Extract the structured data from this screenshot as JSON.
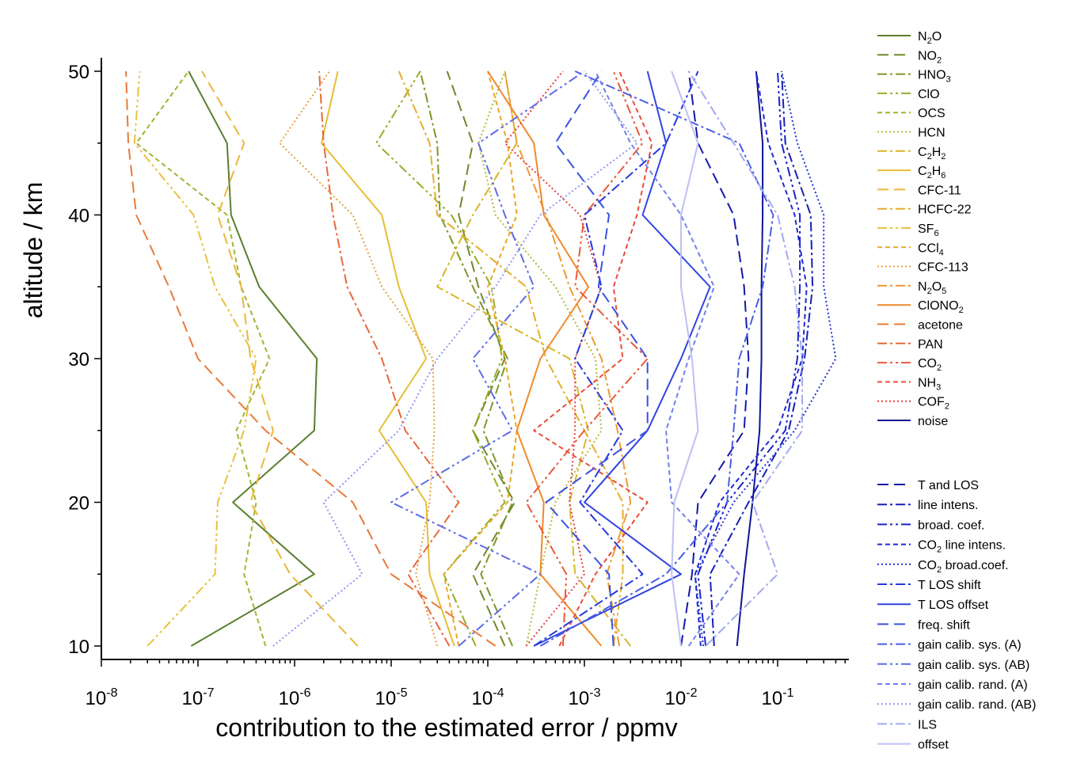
{
  "chart_data": {
    "type": "line",
    "xlabel": "contribution to the estimated error / ppmv",
    "ylabel": "altitude / km",
    "xscale": "log",
    "xlim": [
      1e-08,
      1
    ],
    "ylim": [
      10,
      50
    ],
    "xticks": [
      {
        "base": "10",
        "exp": "-8"
      },
      {
        "base": "10",
        "exp": "-7"
      },
      {
        "base": "10",
        "exp": "-6"
      },
      {
        "base": "10",
        "exp": "-5"
      },
      {
        "base": "10",
        "exp": "-4"
      },
      {
        "base": "10",
        "exp": "-3"
      },
      {
        "base": "10",
        "exp": "-2"
      },
      {
        "base": "10",
        "exp": "-1"
      }
    ],
    "yticks": [
      "10",
      "20",
      "30",
      "40",
      "50"
    ],
    "grid": false,
    "legend_position": "right",
    "altitudes": [
      10,
      15,
      20,
      25,
      30,
      35,
      40,
      45,
      50
    ],
    "series": [
      {
        "name": "N2O",
        "label_main": "N",
        "label_sub": "2",
        "label_tail": "O",
        "color": "#5a7f2e",
        "dash": "solid",
        "values": [
          8.5e-08,
          1.6e-06,
          2.3e-07,
          1.6e-06,
          1.7e-06,
          4.3e-07,
          2.2e-07,
          2e-07,
          8e-08
        ]
      },
      {
        "name": "NO2",
        "label_main": "NO",
        "label_sub": "2",
        "label_tail": "",
        "color": "#6f8a2a",
        "dash": "dash",
        "values": [
          0.00015,
          7e-05,
          0.00019,
          7e-05,
          0.00015,
          8e-05,
          5e-05,
          7e-05,
          3.8e-05
        ]
      },
      {
        "name": "HNO3",
        "label_main": "HNO",
        "label_sub": "3",
        "label_tail": "",
        "color": "#7e9628",
        "dash": "dashdot",
        "values": [
          0.00018,
          8.5e-05,
          0.00018,
          9e-05,
          0.00016,
          7e-05,
          3.2e-05,
          3e-05,
          2e-05
        ]
      },
      {
        "name": "ClO",
        "label_main": "ClO",
        "label_sub": "",
        "label_tail": "",
        "color": "#9aab2a",
        "dash": "dashdotdot",
        "values": [
          7.5e-05,
          3.5e-05,
          0.00015,
          7e-05,
          0.00014,
          0.00011,
          4.2e-05,
          7e-06,
          2e-05
        ]
      },
      {
        "name": "OCS",
        "label_main": "OCS",
        "label_sub": "",
        "label_tail": "",
        "color": "#a5b22e",
        "dash": "dash-short",
        "values": [
          5e-07,
          3e-07,
          4e-07,
          2.5e-07,
          5.5e-07,
          2.8e-07,
          2e-07,
          2.3e-08,
          8e-08
        ]
      },
      {
        "name": "HCN",
        "label_main": "HCN",
        "label_sub": "",
        "label_tail": "",
        "color": "#b5b83a",
        "dash": "dot",
        "values": [
          0.00025,
          0.00035,
          0.0005,
          0.0015,
          0.0013,
          0.0005,
          0.00012,
          8e-05,
          0.00015
        ]
      },
      {
        "name": "C2H2",
        "label_main": "C",
        "label_sub": "2",
        "label_tail": "H",
        "label_sub2": "2",
        "color": "#d8b629",
        "dash": "dashdot",
        "values": [
          0.003,
          0.0008,
          0.0007,
          0.0011,
          0.0007,
          3e-05,
          7e-05,
          0.0002,
          0.00015
        ]
      },
      {
        "name": "C2H6",
        "label_main": "C",
        "label_sub": "2",
        "label_tail": "H",
        "label_sub2": "6",
        "color": "#e7be35",
        "dash": "solid",
        "values": [
          4.5e-05,
          2.5e-05,
          2.3e-05,
          7.5e-06,
          2.3e-05,
          1.2e-05,
          8e-06,
          1.9e-06,
          2.8e-06
        ]
      },
      {
        "name": "CFC-11",
        "label_main": "CFC-11",
        "label_sub": "",
        "label_tail": "",
        "color": "#e9b83a",
        "dash": "dash",
        "values": [
          4.5e-06,
          9e-07,
          3.5e-07,
          6e-07,
          3.5e-07,
          2.8e-07,
          1.6e-07,
          3e-07,
          1.1e-07
        ]
      },
      {
        "name": "HCFC-22",
        "label_main": "HCFC-22",
        "label_sub": "",
        "label_tail": "",
        "color": "#e5ad2c",
        "dash": "dashdot",
        "values": [
          0.002,
          0.0025,
          0.0025,
          0.001,
          0.0004,
          0.00025,
          3e-05,
          2.5e-05,
          1.2e-05
        ]
      },
      {
        "name": "SF6",
        "label_main": "SF",
        "label_sub": "6",
        "label_tail": "",
        "color": "#e9c13e",
        "dash": "dashdotdot",
        "values": [
          3e-08,
          1.5e-07,
          1.6e-07,
          3e-07,
          4e-07,
          1.5e-07,
          9e-08,
          2.2e-08,
          2.5e-08
        ]
      },
      {
        "name": "CCl4",
        "label_main": "CCl",
        "label_sub": "4",
        "label_tail": "",
        "color": "#e8a828",
        "dash": "dash-short",
        "values": [
          5e-05,
          3.5e-05,
          0.00016,
          0.0002,
          0.00015,
          0.0001,
          0.0002,
          0.00016,
          0.0001
        ]
      },
      {
        "name": "CFC-113",
        "label_main": "CFC-113",
        "label_sub": "",
        "label_tail": "",
        "color": "#e7a03c",
        "dash": "dot",
        "values": [
          3e-05,
          1.8e-05,
          2.5e-05,
          2.8e-05,
          2.7e-05,
          8e-06,
          4e-06,
          7e-07,
          2.3e-06
        ]
      },
      {
        "name": "N2O5",
        "label_main": "N",
        "label_sub": "2",
        "label_tail": "O",
        "label_sub2": "5",
        "color": "#ec9a31",
        "dash": "dashdot",
        "values": [
          0.0023,
          0.0017,
          0.003,
          0.0022,
          0.0015,
          0.0007,
          0.0004,
          0.0002,
          0.00015
        ]
      },
      {
        "name": "ClONO2",
        "label_main": "ClONO",
        "label_sub": "2",
        "label_tail": "",
        "color": "#ef8a2a",
        "dash": "solid",
        "values": [
          0.0015,
          0.00035,
          0.00038,
          0.0002,
          0.00035,
          0.0011,
          0.00038,
          0.0003,
          0.0001
        ]
      },
      {
        "name": "acetone",
        "label_main": "acetone",
        "label_sub": "",
        "label_tail": "",
        "color": "#ea7a34",
        "dash": "dash",
        "values": [
          0.00012,
          1e-05,
          4e-06,
          5e-07,
          1e-07,
          5e-08,
          2.3e-08,
          1.9e-08,
          1.8e-08
        ]
      },
      {
        "name": "PAN",
        "label_main": "PAN",
        "label_sub": "",
        "label_tail": "",
        "color": "#e9673a",
        "dash": "dashdot",
        "values": [
          4e-05,
          1.5e-05,
          5e-05,
          1.4e-05,
          8e-06,
          3.5e-06,
          2.5e-06,
          2e-06,
          1.8e-06
        ]
      },
      {
        "name": "CO2",
        "label_main": "CO",
        "label_sub": "2",
        "label_tail": "",
        "color": "#e9583b",
        "dash": "dashdotdot",
        "values": [
          0.0006,
          0.00065,
          0.00025,
          0.001,
          0.0045,
          0.0008,
          0.001,
          0.004,
          0.002
        ]
      },
      {
        "name": "NH3",
        "label_main": "NH",
        "label_sub": "3",
        "label_tail": "",
        "color": "#ec4b3a",
        "dash": "dash-short",
        "values": [
          0.00055,
          0.0013,
          0.0045,
          0.0003,
          0.0025,
          0.002,
          0.0035,
          0.005,
          0.0023
        ]
      },
      {
        "name": "COF2",
        "label_main": "COF",
        "label_sub": "2",
        "label_tail": "",
        "color": "#ec3d3d",
        "dash": "dot",
        "values": [
          0.00025,
          0.001,
          0.0007,
          0.0008,
          0.0008,
          0.0015,
          0.0009,
          0.00015,
          0.0006
        ]
      },
      {
        "name": "noise",
        "label_main": "noise",
        "label_sub": "",
        "label_tail": "",
        "color": "#0f1496",
        "dash": "solid",
        "values": [
          0.038,
          0.045,
          0.055,
          0.065,
          0.068,
          0.068,
          0.07,
          0.07,
          0.06
        ]
      },
      {
        "name": "T and LOS",
        "label_main": "T and LOS",
        "label_sub": "",
        "label_tail": "",
        "color": "#1219a8",
        "dash": "dash",
        "values": [
          0.01,
          0.013,
          0.015,
          0.045,
          0.05,
          0.045,
          0.035,
          0.015,
          0.012
        ]
      },
      {
        "name": "line intens.",
        "label_main": "line intens.",
        "label_sub": "",
        "label_tail": "",
        "color": "#1520b8",
        "dash": "dashdot",
        "values": [
          0.022,
          0.02,
          0.05,
          0.13,
          0.19,
          0.23,
          0.22,
          0.12,
          0.11
        ]
      },
      {
        "name": "broad. coef.",
        "label_main": "broad. coef.",
        "label_sub": "",
        "label_tail": "",
        "color": "#1a24c8",
        "dash": "dashdotdot",
        "values": [
          0.018,
          0.015,
          0.03,
          0.12,
          0.16,
          0.17,
          0.17,
          0.11,
          0.1
        ]
      },
      {
        "name": "CO2 line intens.",
        "label_main": "CO",
        "label_sub": "2",
        "label_tail": " line intens.",
        "color": "#1d2ad6",
        "dash": "dash-short",
        "values": [
          0.016,
          0.014,
          0.025,
          0.1,
          0.18,
          0.2,
          0.15,
          0.08,
          0.06
        ]
      },
      {
        "name": "CO2 broad.coef.",
        "label_main": "CO",
        "label_sub": "2",
        "label_tail": " broad.coef.",
        "color": "#2030dc",
        "dash": "dot",
        "values": [
          0.017,
          0.014,
          0.035,
          0.15,
          0.4,
          0.3,
          0.3,
          0.16,
          0.11
        ]
      },
      {
        "name": "T LOS shift",
        "label_main": "T LOS shift",
        "label_sub": "",
        "label_tail": "",
        "color": "#2638de",
        "dash": "dashdot",
        "values": [
          0.0003,
          0.004,
          0.0009,
          0.0025,
          0.0008,
          0.0015,
          0.001,
          0.007,
          0.015
        ]
      },
      {
        "name": "T LOS offset",
        "label_main": "T LOS offset",
        "label_sub": "",
        "label_tail": "",
        "color": "#2f44e2",
        "dash": "solid",
        "values": [
          0.0003,
          0.01,
          0.001,
          0.0045,
          0.01,
          0.02,
          0.004,
          0.007,
          0.0045
        ]
      },
      {
        "name": "freq. shift",
        "label_main": "freq. shift",
        "label_sub": "",
        "label_tail": "",
        "color": "#3a50e4",
        "dash": "dash",
        "values": [
          0.002,
          0.0018,
          0.0004,
          0.0045,
          0.0045,
          0.0014,
          0.0018,
          0.0005,
          0.0015
        ]
      },
      {
        "name": "gain calib. sys. (A)",
        "label_main": "gain calib. sys. (A)",
        "label_sub": "",
        "label_tail": "",
        "color": "#4a5ee6",
        "dash": "dashdot",
        "values": [
          0.00035,
          0.007,
          0.03,
          0.035,
          0.04,
          0.07,
          0.09,
          0.04,
          0.0008
        ]
      },
      {
        "name": "gain calib. sys. (AB)",
        "label_main": "gain calib. sys. (AB)",
        "label_sub": "",
        "label_tail": "",
        "color": "#5c6ce8",
        "dash": "dashdotdot",
        "values": [
          5e-05,
          0.00035,
          1e-05,
          0.00018,
          7e-05,
          0.0003,
          0.00015,
          8e-05,
          0.001
        ]
      },
      {
        "name": "gain calib. rand. (A)",
        "label_main": "gain calib. rand. (A)",
        "label_sub": "",
        "label_tail": "",
        "color": "#7280ea",
        "dash": "dash-short",
        "values": [
          0.012,
          0.04,
          0.008,
          0.007,
          0.012,
          0.022,
          0.01,
          0.003,
          0.0013
        ]
      },
      {
        "name": "gain calib. rand. (AB)",
        "label_main": "gain calib. rand. (AB)",
        "label_sub": "",
        "label_tail": "",
        "color": "#8c96ee",
        "dash": "dot",
        "values": [
          6e-07,
          5e-06,
          2e-06,
          1.2e-05,
          3e-05,
          0.00012,
          0.00035,
          0.0035,
          0.001
        ]
      },
      {
        "name": "ILS",
        "label_main": "ILS",
        "label_sub": "",
        "label_tail": "",
        "color": "#a2a9f0",
        "dash": "dashdot",
        "values": [
          0.018,
          0.1,
          0.055,
          0.18,
          0.18,
          0.15,
          0.1,
          0.035,
          0.012
        ]
      },
      {
        "name": "offset",
        "label_main": "offset",
        "label_sub": "",
        "label_tail": "",
        "color": "#bcc0f4",
        "dash": "solid",
        "values": [
          0.01,
          0.008,
          0.0085,
          0.015,
          0.013,
          0.01,
          0.01,
          0.015,
          0.008
        ]
      }
    ]
  }
}
